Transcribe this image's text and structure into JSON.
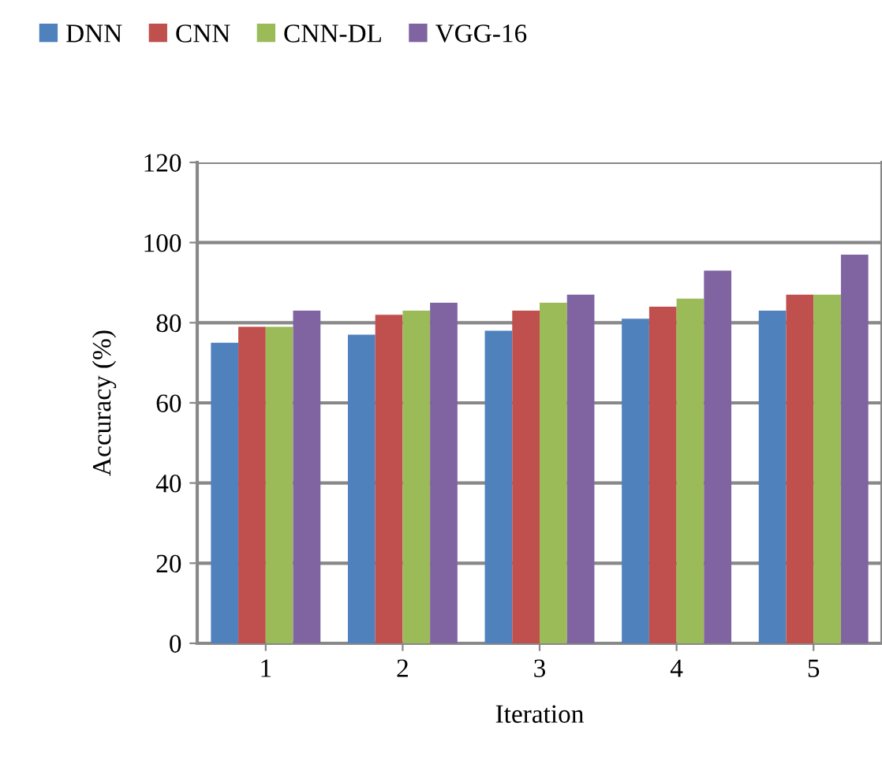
{
  "chart_data": {
    "type": "bar",
    "xlabel": "Iteration",
    "ylabel": "Accuracy (%)",
    "categories": [
      "1",
      "2",
      "3",
      "4",
      "5"
    ],
    "series": [
      {
        "name": "DNN",
        "color": "#4f81bd",
        "values": [
          75,
          77,
          78,
          81,
          83
        ]
      },
      {
        "name": "CNN",
        "color": "#c0504d",
        "values": [
          79,
          82,
          83,
          84,
          87
        ]
      },
      {
        "name": "CNN-DL",
        "color": "#9bbb59",
        "values": [
          79,
          83,
          85,
          86,
          87
        ]
      },
      {
        "name": "VGG-16",
        "color": "#8064a2",
        "values": [
          83,
          85,
          87,
          93,
          97
        ]
      }
    ],
    "ylim": [
      0,
      120
    ],
    "yticks": [
      0,
      20,
      40,
      60,
      80,
      100,
      120
    ],
    "grid": "y",
    "legend": "top"
  }
}
